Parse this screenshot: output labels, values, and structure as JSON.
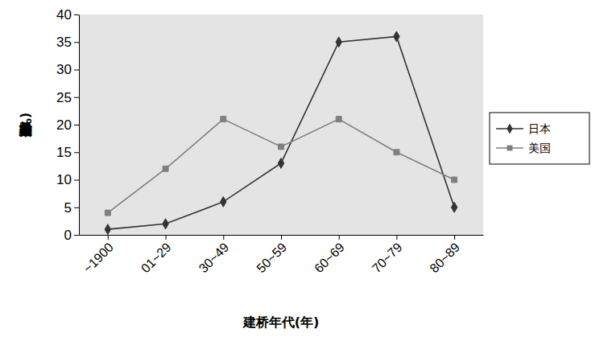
{
  "chart_data": {
    "type": "line",
    "y_label": "已建桥梁数分布(%)",
    "x_label": "建桥年代(年)",
    "categories": [
      "~1900",
      "01~29",
      "30~49",
      "50~59",
      "60~69",
      "70~79",
      "80~89"
    ],
    "series": [
      {
        "name": "日本",
        "color": "#333333",
        "marker": "diamond",
        "values": [
          1,
          2,
          6,
          13,
          35,
          36,
          5
        ]
      },
      {
        "name": "美国",
        "color": "#7f7f7f",
        "marker": "square",
        "values": [
          4,
          12,
          21,
          16,
          21,
          15,
          10
        ]
      }
    ],
    "ylim": [
      0,
      40
    ],
    "yticks": [
      0,
      5,
      10,
      15,
      20,
      25,
      30,
      35,
      40
    ],
    "grid": false,
    "legend": "right"
  }
}
